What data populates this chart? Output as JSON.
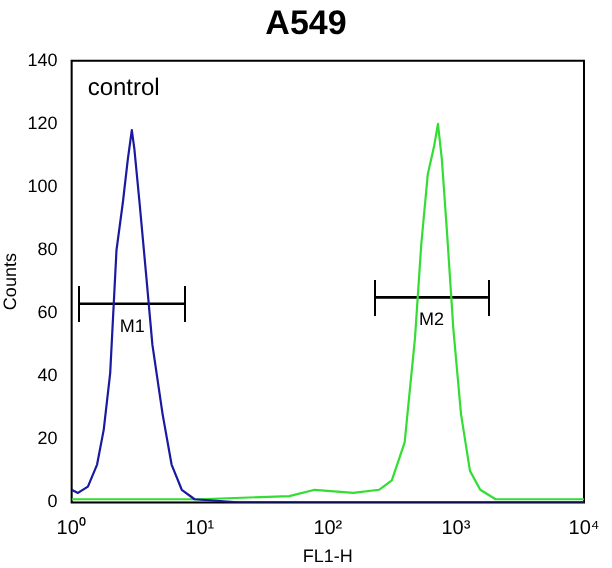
{
  "chart_data": {
    "type": "line",
    "title": "A549",
    "xlabel": "FL1-H",
    "ylabel": "Counts",
    "log": "x",
    "marker": "none",
    "line_style": "solid",
    "grid": false,
    "legend": false,
    "xlim": [
      1,
      10000
    ],
    "xticks": [
      {
        "value": 1,
        "label": "10⁰"
      },
      {
        "value": 10,
        "label": "10¹"
      },
      {
        "value": 100,
        "label": "10²"
      },
      {
        "value": 1000,
        "label": "10³"
      },
      {
        "value": 10000,
        "label": "10⁴"
      }
    ],
    "ylim": [
      0,
      140
    ],
    "yticks": [
      0,
      20,
      40,
      60,
      80,
      100,
      120,
      140
    ],
    "annotations": [
      "control"
    ],
    "series": [
      {
        "color": "#1a1aa0",
        "x": [
          1,
          1.12,
          1.34,
          1.58,
          1.78,
          2.0,
          2.24,
          2.51,
          2.75,
          2.95,
          3.09,
          3.39,
          3.8,
          4.27,
          5.13,
          6.03,
          7.24,
          9.12,
          20,
          100,
          1000,
          10000
        ],
        "values": [
          4,
          3,
          5,
          12,
          23,
          41,
          80,
          95,
          109,
          118,
          112,
          95,
          73,
          50,
          28,
          12,
          4,
          1,
          0,
          0,
          0,
          0
        ]
      },
      {
        "color": "#33dd33",
        "x": [
          1,
          10,
          50,
          79,
          158,
          251,
          316,
          398,
          479,
          537,
          603,
          676,
          724,
          776,
          851,
          955,
          1096,
          1288,
          1549,
          2042,
          9333,
          10000
        ],
        "values": [
          1,
          1,
          2,
          4,
          3,
          4,
          7,
          19,
          52,
          82,
          104,
          113,
          120,
          109,
          86,
          55,
          28,
          10,
          4,
          1,
          1,
          1
        ]
      },
      {
        "name": "M1",
        "color": "#000000",
        "x": [
          1.16,
          7.6
        ],
        "values": [
          63,
          63
        ]
      },
      {
        "name": "M2",
        "color": "#000000",
        "x": [
          234,
          1778
        ],
        "values": [
          65,
          65
        ]
      }
    ]
  }
}
